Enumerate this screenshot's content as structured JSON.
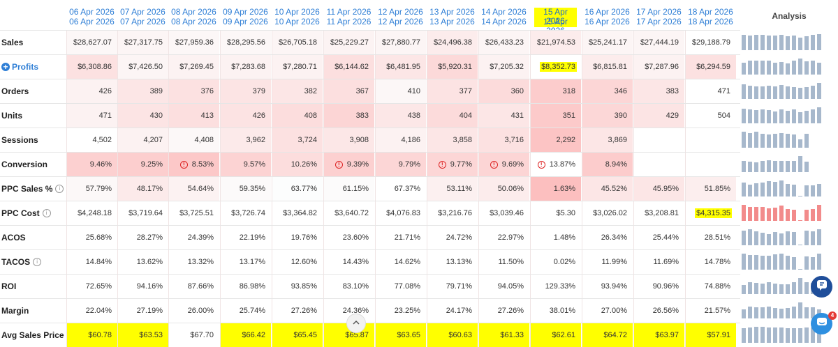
{
  "header": {
    "analysis_label": "Analysis",
    "columns": [
      {
        "line1": "06 Apr 2026",
        "line2": "06 Apr 2026",
        "highlight": false
      },
      {
        "line1": "07 Apr 2026",
        "line2": "07 Apr 2026",
        "highlight": false
      },
      {
        "line1": "08 Apr 2026",
        "line2": "08 Apr 2026",
        "highlight": false
      },
      {
        "line1": "09 Apr 2026",
        "line2": "09 Apr 2026",
        "highlight": false
      },
      {
        "line1": "10 Apr 2026",
        "line2": "10 Apr 2026",
        "highlight": false
      },
      {
        "line1": "11 Apr 2026",
        "line2": "11 Apr 2026",
        "highlight": false
      },
      {
        "line1": "12 Apr 2026",
        "line2": "12 Apr 2026",
        "highlight": false
      },
      {
        "line1": "13 Apr 2026",
        "line2": "13 Apr 2026",
        "highlight": false
      },
      {
        "line1": "14 Apr 2026",
        "line2": "14 Apr 2026",
        "highlight": false
      },
      {
        "line1": "15 Apr 2026",
        "line2": "15 Apr 2026",
        "highlight": true
      },
      {
        "line1": "16 Apr 2026",
        "line2": "16 Apr 2026",
        "highlight": false
      },
      {
        "line1": "17 Apr 2026",
        "line2": "17 Apr 2026",
        "highlight": false
      },
      {
        "line1": "18 Apr 2026",
        "line2": "18 Apr 2026",
        "highlight": false
      }
    ]
  },
  "colors": {
    "link_blue": "#2f7fd6",
    "highlight_yellow": "#ffff00",
    "spark_blue": "#a7b8cc",
    "spark_red": "#f28b8b",
    "warn_red": "#d22222"
  },
  "rows": [
    {
      "key": "sales",
      "label": "Sales",
      "info": false,
      "expand": false,
      "cells": [
        {
          "v": "$28,627.07",
          "s": 0.1
        },
        {
          "v": "$27,317.75",
          "s": 0.12
        },
        {
          "v": "$27,959.36",
          "s": 0.1
        },
        {
          "v": "$28,295.56",
          "s": 0.1
        },
        {
          "v": "$26,705.18",
          "s": 0.12
        },
        {
          "v": "$25,229.27",
          "s": 0.14
        },
        {
          "v": "$27,880.77",
          "s": 0.12
        },
        {
          "v": "$24,496.38",
          "s": 0.22
        },
        {
          "v": "$26,433.23",
          "s": 0.12
        },
        {
          "v": "$21,974.53",
          "s": 0.22
        },
        {
          "v": "$25,241.17",
          "s": 0.12
        },
        {
          "v": "$27,444.19",
          "s": 0.12
        },
        {
          "v": "$29,188.79",
          "s": 0.0
        }
      ],
      "spark": {
        "color": "blue",
        "values": [
          0.95,
          0.93,
          0.95,
          0.96,
          0.92,
          0.9,
          0.95,
          0.86,
          0.91,
          0.8,
          0.88,
          0.94,
          1.0
        ]
      }
    },
    {
      "key": "profits",
      "label": "Profits",
      "info": false,
      "expand": true,
      "cells": [
        {
          "v": "$6,308.86",
          "s": 0.35
        },
        {
          "v": "$7,426.50",
          "s": 0.12
        },
        {
          "v": "$7,269.45",
          "s": 0.15
        },
        {
          "v": "$7,283.68",
          "s": 0.15
        },
        {
          "v": "$7,280.71",
          "s": 0.15
        },
        {
          "v": "$6,144.62",
          "s": 0.38
        },
        {
          "v": "$6,481.95",
          "s": 0.3
        },
        {
          "v": "$5,920.31",
          "s": 0.45
        },
        {
          "v": "$7,205.32",
          "s": 0.15
        },
        {
          "v": "$8,352.73",
          "s": 0.0,
          "hl": true
        },
        {
          "v": "$6,815.81",
          "s": 0.22
        },
        {
          "v": "$7,287.96",
          "s": 0.15
        },
        {
          "v": "$6,294.59",
          "s": 0.35
        }
      ],
      "spark": {
        "color": "blue",
        "values": [
          0.76,
          0.89,
          0.87,
          0.87,
          0.87,
          0.74,
          0.78,
          0.71,
          0.86,
          1.0,
          0.82,
          0.87,
          0.75
        ]
      }
    },
    {
      "key": "orders",
      "label": "Orders",
      "info": false,
      "expand": false,
      "cells": [
        {
          "v": "426",
          "s": 0.15
        },
        {
          "v": "389",
          "s": 0.3
        },
        {
          "v": "376",
          "s": 0.35
        },
        {
          "v": "379",
          "s": 0.32
        },
        {
          "v": "382",
          "s": 0.3
        },
        {
          "v": "367",
          "s": 0.38
        },
        {
          "v": "410",
          "s": 0.1
        },
        {
          "v": "377",
          "s": 0.33
        },
        {
          "v": "360",
          "s": 0.42
        },
        {
          "v": "318",
          "s": 0.6
        },
        {
          "v": "346",
          "s": 0.48
        },
        {
          "v": "383",
          "s": 0.3
        },
        {
          "v": "471",
          "s": 0.0
        }
      ],
      "spark": {
        "color": "blue",
        "values": [
          0.9,
          0.83,
          0.8,
          0.8,
          0.81,
          0.78,
          0.87,
          0.8,
          0.76,
          0.68,
          0.73,
          0.81,
          1.0
        ]
      }
    },
    {
      "key": "units",
      "label": "Units",
      "info": false,
      "expand": false,
      "cells": [
        {
          "v": "471",
          "s": 0.15
        },
        {
          "v": "430",
          "s": 0.32
        },
        {
          "v": "413",
          "s": 0.38
        },
        {
          "v": "426",
          "s": 0.33
        },
        {
          "v": "408",
          "s": 0.4
        },
        {
          "v": "383",
          "s": 0.5
        },
        {
          "v": "438",
          "s": 0.28
        },
        {
          "v": "404",
          "s": 0.42
        },
        {
          "v": "431",
          "s": 0.3
        },
        {
          "v": "351",
          "s": 0.62
        },
        {
          "v": "390",
          "s": 0.47
        },
        {
          "v": "429",
          "s": 0.32
        },
        {
          "v": "504",
          "s": 0.0
        }
      ],
      "spark": {
        "color": "blue",
        "values": [
          0.93,
          0.85,
          0.82,
          0.85,
          0.81,
          0.76,
          0.87,
          0.8,
          0.86,
          0.7,
          0.77,
          0.85,
          1.0
        ]
      }
    },
    {
      "key": "sessions",
      "label": "Sessions",
      "info": false,
      "expand": false,
      "cells": [
        {
          "v": "4,502",
          "s": 0.0
        },
        {
          "v": "4,207",
          "s": 0.15
        },
        {
          "v": "4,408",
          "s": 0.08
        },
        {
          "v": "3,962",
          "s": 0.25
        },
        {
          "v": "3,724",
          "s": 0.35
        },
        {
          "v": "3,908",
          "s": 0.28
        },
        {
          "v": "4,186",
          "s": 0.15
        },
        {
          "v": "3,858",
          "s": 0.3
        },
        {
          "v": "3,716",
          "s": 0.35
        },
        {
          "v": "2,292",
          "s": 0.7
        },
        {
          "v": "3,869",
          "s": 0.3
        },
        {
          "v": "",
          "s": -1
        },
        {
          "v": "",
          "s": -1
        }
      ],
      "spark": {
        "color": "blue",
        "values": [
          1.0,
          0.93,
          0.98,
          0.88,
          0.83,
          0.87,
          0.93,
          0.86,
          0.83,
          0.51,
          0.86,
          0,
          0
        ]
      }
    },
    {
      "key": "conversion",
      "label": "Conversion",
      "info": false,
      "expand": false,
      "cells": [
        {
          "v": "9.46%",
          "s": 0.55
        },
        {
          "v": "9.25%",
          "s": 0.58
        },
        {
          "v": "8.53%",
          "s": 0.65,
          "warn": true
        },
        {
          "v": "9.57%",
          "s": 0.52
        },
        {
          "v": "10.26%",
          "s": 0.4
        },
        {
          "v": "9.39%",
          "s": 0.55,
          "warn": true
        },
        {
          "v": "9.79%",
          "s": 0.48
        },
        {
          "v": "9.77%",
          "s": 0.48,
          "warn": true
        },
        {
          "v": "9.69%",
          "s": 0.5,
          "warn": true
        },
        {
          "v": "13.87%",
          "s": 0.0,
          "warn": true
        },
        {
          "v": "8.94%",
          "s": 0.6
        },
        {
          "v": "",
          "s": -1
        },
        {
          "v": "",
          "s": -1
        }
      ],
      "spark": {
        "color": "blue",
        "values": [
          0.68,
          0.67,
          0.62,
          0.69,
          0.74,
          0.68,
          0.71,
          0.7,
          0.7,
          1.0,
          0.64,
          0,
          0
        ]
      }
    },
    {
      "key": "ppc_sales_pct",
      "label": "PPC Sales %",
      "info": true,
      "expand": false,
      "cells": [
        {
          "v": "57.79%",
          "s": 0.08
        },
        {
          "v": "48.17%",
          "s": 0.25
        },
        {
          "v": "54.64%",
          "s": 0.15
        },
        {
          "v": "59.35%",
          "s": 0.06
        },
        {
          "v": "63.77%",
          "s": 0.02
        },
        {
          "v": "61.15%",
          "s": 0.05
        },
        {
          "v": "67.37%",
          "s": 0.0
        },
        {
          "v": "53.11%",
          "s": 0.18
        },
        {
          "v": "50.06%",
          "s": 0.22
        },
        {
          "v": "1.63%",
          "s": 0.75
        },
        {
          "v": "45.52%",
          "s": 0.3
        },
        {
          "v": "45.95%",
          "s": 0.3
        },
        {
          "v": "51.85%",
          "s": 0.2
        }
      ],
      "spark": {
        "color": "blue",
        "values": [
          0.86,
          0.72,
          0.81,
          0.88,
          0.95,
          0.91,
          1.0,
          0.79,
          0.74,
          0.05,
          0.68,
          0.68,
          0.77
        ]
      }
    },
    {
      "key": "ppc_cost",
      "label": "PPC Cost",
      "info": true,
      "expand": false,
      "cells": [
        {
          "v": "$4,248.18",
          "s": 0.0
        },
        {
          "v": "$3,719.64",
          "s": 0.0
        },
        {
          "v": "$3,725.51",
          "s": 0.0
        },
        {
          "v": "$3,726.74",
          "s": 0.0
        },
        {
          "v": "$3,364.82",
          "s": 0.0
        },
        {
          "v": "$3,640.72",
          "s": 0.0
        },
        {
          "v": "$4,076.83",
          "s": 0.0
        },
        {
          "v": "$3,216.76",
          "s": 0.0
        },
        {
          "v": "$3,039.46",
          "s": 0.0
        },
        {
          "v": "$5.30",
          "s": 0.0
        },
        {
          "v": "$3,026.02",
          "s": 0.0
        },
        {
          "v": "$3,208.81",
          "s": 0.0
        },
        {
          "v": "$4,315.35",
          "s": 0.0,
          "hl": true
        }
      ],
      "spark": {
        "color": "red",
        "values": [
          0.98,
          0.86,
          0.86,
          0.86,
          0.78,
          0.84,
          0.94,
          0.75,
          0.7,
          0.02,
          0.7,
          0.74,
          1.0
        ]
      }
    },
    {
      "key": "acos",
      "label": "ACOS",
      "info": false,
      "expand": false,
      "cells": [
        {
          "v": "25.68%",
          "s": 0.0
        },
        {
          "v": "28.27%",
          "s": 0.0
        },
        {
          "v": "24.39%",
          "s": 0.0
        },
        {
          "v": "22.19%",
          "s": 0.0
        },
        {
          "v": "19.76%",
          "s": 0.0
        },
        {
          "v": "23.60%",
          "s": 0.0
        },
        {
          "v": "21.71%",
          "s": 0.0
        },
        {
          "v": "24.72%",
          "s": 0.0
        },
        {
          "v": "22.97%",
          "s": 0.0
        },
        {
          "v": "1.48%",
          "s": 0.0
        },
        {
          "v": "26.34%",
          "s": 0.0
        },
        {
          "v": "25.44%",
          "s": 0.0
        },
        {
          "v": "28.51%",
          "s": 0.0
        }
      ],
      "spark": {
        "color": "blue",
        "values": [
          0.9,
          0.99,
          0.86,
          0.78,
          0.69,
          0.83,
          0.76,
          0.87,
          0.81,
          0.05,
          0.92,
          0.89,
          1.0
        ]
      }
    },
    {
      "key": "tacos",
      "label": "TACOS",
      "info": true,
      "expand": false,
      "cells": [
        {
          "v": "14.84%",
          "s": 0.0
        },
        {
          "v": "13.62%",
          "s": 0.0
        },
        {
          "v": "13.32%",
          "s": 0.0
        },
        {
          "v": "13.17%",
          "s": 0.0
        },
        {
          "v": "12.60%",
          "s": 0.0
        },
        {
          "v": "14.43%",
          "s": 0.0
        },
        {
          "v": "14.62%",
          "s": 0.0
        },
        {
          "v": "13.13%",
          "s": 0.0
        },
        {
          "v": "11.50%",
          "s": 0.0
        },
        {
          "v": "0.02%",
          "s": 0.0
        },
        {
          "v": "11.99%",
          "s": 0.0
        },
        {
          "v": "11.69%",
          "s": 0.0
        },
        {
          "v": "14.78%",
          "s": 0.0
        }
      ],
      "spark": {
        "color": "blue",
        "values": [
          1.0,
          0.92,
          0.9,
          0.89,
          0.85,
          0.97,
          0.98,
          0.88,
          0.77,
          0.02,
          0.81,
          0.79,
          0.99
        ]
      }
    },
    {
      "key": "roi",
      "label": "ROI",
      "info": false,
      "expand": false,
      "cells": [
        {
          "v": "72.65%",
          "s": 0.0
        },
        {
          "v": "94.16%",
          "s": 0.0
        },
        {
          "v": "87.66%",
          "s": 0.0
        },
        {
          "v": "86.98%",
          "s": 0.0
        },
        {
          "v": "93.85%",
          "s": 0.0
        },
        {
          "v": "83.10%",
          "s": 0.0
        },
        {
          "v": "77.08%",
          "s": 0.0
        },
        {
          "v": "79.71%",
          "s": 0.0
        },
        {
          "v": "94.05%",
          "s": 0.0
        },
        {
          "v": "129.33%",
          "s": 0.0
        },
        {
          "v": "93.94%",
          "s": 0.0
        },
        {
          "v": "90.96%",
          "s": 0.0
        },
        {
          "v": "74.88%",
          "s": 0.0
        }
      ],
      "spark": {
        "color": "blue",
        "values": [
          0.56,
          0.73,
          0.68,
          0.67,
          0.73,
          0.64,
          0.6,
          0.62,
          0.73,
          1.0,
          0.73,
          0.7,
          0.58
        ]
      }
    },
    {
      "key": "margin",
      "label": "Margin",
      "info": false,
      "expand": false,
      "cells": [
        {
          "v": "22.04%",
          "s": 0.0
        },
        {
          "v": "27.19%",
          "s": 0.0
        },
        {
          "v": "26.00%",
          "s": 0.0
        },
        {
          "v": "25.74%",
          "s": 0.0
        },
        {
          "v": "27.26%",
          "s": 0.0
        },
        {
          "v": "24.36%",
          "s": 0.0
        },
        {
          "v": "23.25%",
          "s": 0.0
        },
        {
          "v": "24.17%",
          "s": 0.0
        },
        {
          "v": "27.26%",
          "s": 0.0
        },
        {
          "v": "38.01%",
          "s": 0.0
        },
        {
          "v": "27.00%",
          "s": 0.0
        },
        {
          "v": "26.56%",
          "s": 0.0
        },
        {
          "v": "21.57%",
          "s": 0.0
        }
      ],
      "spark": {
        "color": "blue",
        "values": [
          0.58,
          0.72,
          0.68,
          0.68,
          0.72,
          0.64,
          0.61,
          0.64,
          0.72,
          1.0,
          0.71,
          0.7,
          0.57
        ]
      }
    },
    {
      "key": "avg_sales_price",
      "label": "Avg Sales Price",
      "info": false,
      "expand": false,
      "cells": [
        {
          "v": "$60.78",
          "s": 0.0,
          "bghl": true
        },
        {
          "v": "$63.53",
          "s": 0.0,
          "bghl": true
        },
        {
          "v": "$67.70",
          "s": 0.0
        },
        {
          "v": "$66.42",
          "s": 0.0,
          "bghl": true
        },
        {
          "v": "$65.45",
          "s": 0.0,
          "bghl": true
        },
        {
          "v": "$65.87",
          "s": 0.0,
          "bghl": true
        },
        {
          "v": "$63.65",
          "s": 0.0,
          "bghl": true
        },
        {
          "v": "$60.63",
          "s": 0.0,
          "bghl": true
        },
        {
          "v": "$61.33",
          "s": 0.0,
          "bghl": true
        },
        {
          "v": "$62.61",
          "s": 0.0,
          "bghl": true
        },
        {
          "v": "$64.72",
          "s": 0.0,
          "bghl": true
        },
        {
          "v": "$63.97",
          "s": 0.0,
          "bghl": true
        },
        {
          "v": "$57.91",
          "s": 0.0,
          "bghl": true
        }
      ],
      "spark": {
        "color": "blue",
        "values": [
          0.9,
          0.94,
          1.0,
          0.98,
          0.97,
          0.97,
          0.94,
          0.9,
          0.91,
          0.92,
          0.96,
          0.94,
          0.86
        ]
      }
    }
  ],
  "widgets": {
    "scroll_top_glyph": "^",
    "notification_count": "4"
  }
}
